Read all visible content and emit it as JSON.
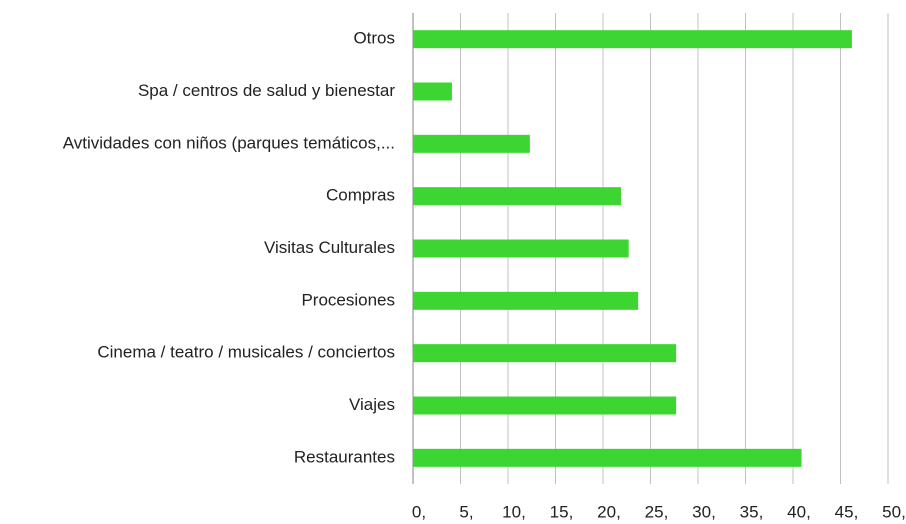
{
  "chart_data": {
    "type": "barh",
    "categories": [
      "Otros",
      "Spa / centros de salud y bienestar",
      "Avtividades con niños (parques temáticos,...",
      "Compras",
      "Visitas Culturales",
      "Procesiones",
      "Cinema / teatro / musicales / conciertos",
      "Viajes",
      "Restaurantes"
    ],
    "values": [
      46.2,
      4.1,
      12.3,
      21.9,
      22.7,
      23.7,
      27.7,
      27.7,
      40.9
    ],
    "color": "#3cd531",
    "xlim": [
      0,
      50
    ],
    "xticks": [
      {
        "value": 0,
        "label": "0,"
      },
      {
        "value": 5,
        "label": "5,"
      },
      {
        "value": 10,
        "label": "10,"
      },
      {
        "value": 15,
        "label": "15,"
      },
      {
        "value": 20,
        "label": "20,"
      },
      {
        "value": 25,
        "label": "25,"
      },
      {
        "value": 30,
        "label": "30,"
      },
      {
        "value": 35,
        "label": "35,"
      },
      {
        "value": 40,
        "label": "40,"
      },
      {
        "value": 45,
        "label": "45,"
      },
      {
        "value": 50,
        "label": "50,"
      }
    ],
    "grid": true
  }
}
